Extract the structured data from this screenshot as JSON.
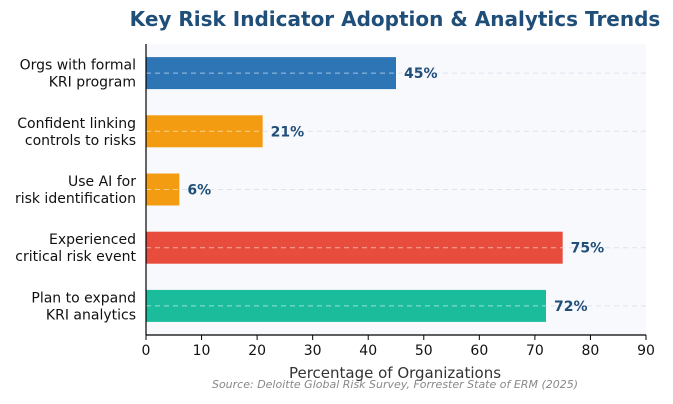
{
  "chart_data": {
    "type": "bar",
    "orientation": "horizontal",
    "title": "Key Risk Indicator Adoption & Analytics Trends",
    "xlabel": "Percentage of Organizations",
    "ylabel": "",
    "xlim": [
      0,
      90
    ],
    "x_ticks": [
      "0",
      "10",
      "20",
      "30",
      "40",
      "50",
      "60",
      "70",
      "80",
      "90"
    ],
    "categories": [
      [
        "Orgs with formal",
        "KRI program"
      ],
      [
        "Confident linking",
        "controls to risks"
      ],
      [
        "Use AI for",
        "risk identification"
      ],
      [
        "Experienced",
        "critical risk event"
      ],
      [
        "Plan to expand",
        "KRI analytics"
      ]
    ],
    "values": [
      45,
      21,
      6,
      75,
      72
    ],
    "value_labels": [
      "45%",
      "21%",
      "6%",
      "75%",
      "72%"
    ],
    "bar_colors": [
      "#2e75b6",
      "#f39c12",
      "#f39c12",
      "#e74c3c",
      "#1abc9c"
    ],
    "grid": "x dashed",
    "source": "Source: Deloitte Global Risk Survey, Forrester State of ERM (2025)"
  },
  "colors": {
    "title": "#1f4e79",
    "value_label": "#1f4e79",
    "axis": "#000000",
    "plot_background": "#f8f9fc",
    "grid": "#dde3ee",
    "source": "#888888"
  }
}
